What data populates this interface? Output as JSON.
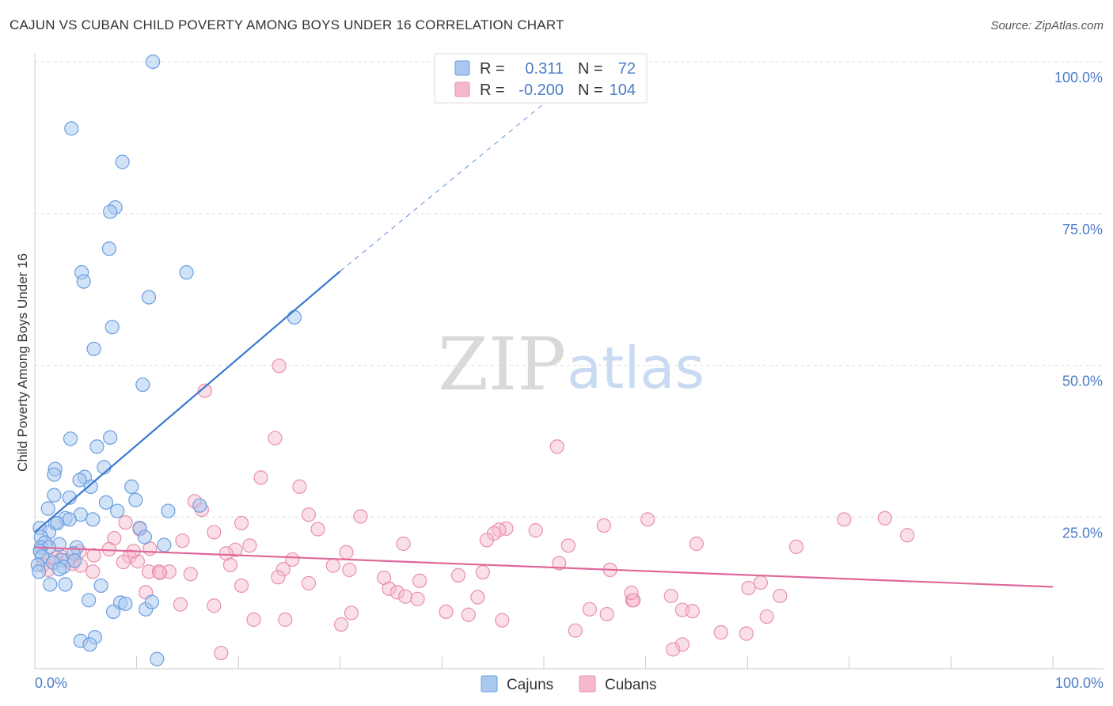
{
  "header": {
    "title": "CAJUN VS CUBAN CHILD POVERTY AMONG BOYS UNDER 16 CORRELATION CHART",
    "source": "Source: ZipAtlas.com"
  },
  "watermark": {
    "zip": "ZIP",
    "atlas": "atlas"
  },
  "legend": {
    "rows": [
      {
        "r_label": "R =",
        "r_value": "0.311",
        "n_label": "N =",
        "n_value": "72"
      },
      {
        "r_label": "R =",
        "r_value": "-0.200",
        "n_label": "N =",
        "n_value": "104"
      }
    ]
  },
  "bottom_legend": {
    "cajuns": "Cajuns",
    "cubans": "Cubans"
  },
  "colors": {
    "cajun_fill": "#a8c8f0",
    "cajun_stroke": "#6a9ee0",
    "cajun_line": "#3a78d0",
    "cuban_fill": "#f7b8cc",
    "cuban_stroke": "#e890ab",
    "cuban_line": "#e0679a",
    "axis_label": "#4a7cc7",
    "grid": "#dddddd"
  },
  "chart_data": {
    "type": "scatter",
    "title": "CAJUN VS CUBAN CHILD POVERTY AMONG BOYS UNDER 16 CORRELATION CHART",
    "xlabel": "",
    "ylabel": "Child Poverty Among Boys Under 16",
    "xlim": [
      0,
      100
    ],
    "ylim": [
      0,
      100
    ],
    "x_tick_labels": [
      "0.0%",
      "100.0%"
    ],
    "y_tick_labels": [
      "25.0%",
      "50.0%",
      "75.0%",
      "100.0%"
    ],
    "y_ticks": [
      25,
      50,
      75,
      100
    ],
    "grid": true,
    "series": [
      {
        "name": "Cajuns",
        "r": 0.311,
        "n": 72,
        "trend": {
          "x0": 0,
          "y0": 22.5,
          "x1": 30,
          "y1": 65.5,
          "dash_x1": 55,
          "dash_y1": 100
        },
        "points": [
          [
            11.6,
            100
          ],
          [
            3.6,
            89
          ],
          [
            8.6,
            83.5
          ],
          [
            7.9,
            76
          ],
          [
            7.4,
            75.3
          ],
          [
            7.3,
            69.2
          ],
          [
            4.6,
            65.3
          ],
          [
            14.9,
            65.3
          ],
          [
            4.8,
            63.8
          ],
          [
            11.2,
            61.2
          ],
          [
            25.5,
            57.9
          ],
          [
            7.6,
            56.3
          ],
          [
            5.8,
            52.7
          ],
          [
            10.6,
            46.8
          ],
          [
            3.5,
            37.9
          ],
          [
            7.4,
            38.1
          ],
          [
            6.1,
            36.6
          ],
          [
            2.0,
            32.9
          ],
          [
            6.8,
            33.2
          ],
          [
            1.9,
            32.0
          ],
          [
            4.9,
            31.6
          ],
          [
            4.4,
            31.1
          ],
          [
            5.5,
            30.0
          ],
          [
            9.5,
            30.0
          ],
          [
            1.9,
            28.6
          ],
          [
            3.4,
            28.2
          ],
          [
            9.9,
            27.8
          ],
          [
            7.0,
            27.4
          ],
          [
            16.2,
            26.9
          ],
          [
            1.3,
            26.4
          ],
          [
            13.1,
            26.0
          ],
          [
            8.1,
            26.0
          ],
          [
            4.5,
            25.4
          ],
          [
            3.0,
            24.8
          ],
          [
            3.4,
            24.6
          ],
          [
            5.7,
            24.6
          ],
          [
            2.0,
            24.0
          ],
          [
            2.2,
            24.0
          ],
          [
            0.5,
            23.2
          ],
          [
            10.3,
            23.2
          ],
          [
            1.4,
            22.5
          ],
          [
            0.6,
            21.7
          ],
          [
            10.8,
            21.7
          ],
          [
            1.0,
            20.8
          ],
          [
            2.4,
            20.5
          ],
          [
            12.7,
            20.4
          ],
          [
            0.6,
            20.0
          ],
          [
            1.4,
            20.0
          ],
          [
            4.1,
            20.0
          ],
          [
            0.5,
            19.4
          ],
          [
            3.8,
            19.0
          ],
          [
            0.7,
            18.5
          ],
          [
            2.6,
            17.9
          ],
          [
            3.9,
            17.8
          ],
          [
            1.8,
            17.5
          ],
          [
            0.3,
            17.1
          ],
          [
            2.8,
            16.8
          ],
          [
            2.4,
            16.4
          ],
          [
            0.4,
            16.0
          ],
          [
            1.5,
            13.9
          ],
          [
            3.0,
            13.9
          ],
          [
            6.5,
            13.7
          ],
          [
            5.3,
            11.3
          ],
          [
            8.4,
            10.9
          ],
          [
            8.9,
            10.7
          ],
          [
            10.9,
            9.8
          ],
          [
            7.7,
            9.4
          ],
          [
            11.5,
            11.0
          ],
          [
            4.5,
            4.6
          ],
          [
            5.9,
            5.2
          ],
          [
            5.4,
            4.0
          ],
          [
            12.0,
            1.6
          ]
        ]
      },
      {
        "name": "Cubans",
        "r": -0.2,
        "n": 104,
        "trend": {
          "x0": 0,
          "y0": 20.0,
          "x1": 100,
          "y1": 13.5
        },
        "points": [
          [
            24.0,
            49.9
          ],
          [
            16.7,
            45.8
          ],
          [
            23.6,
            38.0
          ],
          [
            51.3,
            36.6
          ],
          [
            22.2,
            31.5
          ],
          [
            26.0,
            30.0
          ],
          [
            15.7,
            27.6
          ],
          [
            16.4,
            26.2
          ],
          [
            26.9,
            25.4
          ],
          [
            32.0,
            25.1
          ],
          [
            83.5,
            24.8
          ],
          [
            79.5,
            24.6
          ],
          [
            60.2,
            24.6
          ],
          [
            8.9,
            24.1
          ],
          [
            20.3,
            24.0
          ],
          [
            55.9,
            23.6
          ],
          [
            10.3,
            23.0
          ],
          [
            46.3,
            23.1
          ],
          [
            27.8,
            23.0
          ],
          [
            17.6,
            22.5
          ],
          [
            49.2,
            22.8
          ],
          [
            45.6,
            22.9
          ],
          [
            45.1,
            22.3
          ],
          [
            85.7,
            22.0
          ],
          [
            7.8,
            21.5
          ],
          [
            44.4,
            21.2
          ],
          [
            14.5,
            21.1
          ],
          [
            65.0,
            20.6
          ],
          [
            36.2,
            20.6
          ],
          [
            52.4,
            20.3
          ],
          [
            74.8,
            20.1
          ],
          [
            21.1,
            20.3
          ],
          [
            19.7,
            19.6
          ],
          [
            11.3,
            19.8
          ],
          [
            7.3,
            19.7
          ],
          [
            30.6,
            19.2
          ],
          [
            4.4,
            19.3
          ],
          [
            18.8,
            19.0
          ],
          [
            9.3,
            18.5
          ],
          [
            2.7,
            18.4
          ],
          [
            1.3,
            18.0
          ],
          [
            25.3,
            18.0
          ],
          [
            10.1,
            17.7
          ],
          [
            8.7,
            17.6
          ],
          [
            3.7,
            17.3
          ],
          [
            0.8,
            17.1
          ],
          [
            4.5,
            17.0
          ],
          [
            51.5,
            17.4
          ],
          [
            19.2,
            17.1
          ],
          [
            29.3,
            17.0
          ],
          [
            24.4,
            16.4
          ],
          [
            1.3,
            16.3
          ],
          [
            56.5,
            16.3
          ],
          [
            30.9,
            16.3
          ],
          [
            5.7,
            16.0
          ],
          [
            11.2,
            16.0
          ],
          [
            12.2,
            16.0
          ],
          [
            13.2,
            16.0
          ],
          [
            44.0,
            15.9
          ],
          [
            12.3,
            15.8
          ],
          [
            41.6,
            15.4
          ],
          [
            15.3,
            15.6
          ],
          [
            23.9,
            15.1
          ],
          [
            34.3,
            15.0
          ],
          [
            37.8,
            14.5
          ],
          [
            26.9,
            14.1
          ],
          [
            71.3,
            14.2
          ],
          [
            70.1,
            13.3
          ],
          [
            20.3,
            13.7
          ],
          [
            34.8,
            13.2
          ],
          [
            35.6,
            12.6
          ],
          [
            10.9,
            12.6
          ],
          [
            62.5,
            12.0
          ],
          [
            36.4,
            11.9
          ],
          [
            37.6,
            11.5
          ],
          [
            43.5,
            11.8
          ],
          [
            58.7,
            11.3
          ],
          [
            58.8,
            11.3
          ],
          [
            73.2,
            12.0
          ],
          [
            58.6,
            12.5
          ],
          [
            14.3,
            10.6
          ],
          [
            17.6,
            10.4
          ],
          [
            54.5,
            9.8
          ],
          [
            63.6,
            9.7
          ],
          [
            40.4,
            9.4
          ],
          [
            64.6,
            9.5
          ],
          [
            31.1,
            9.2
          ],
          [
            42.6,
            8.9
          ],
          [
            56.2,
            9.0
          ],
          [
            71.9,
            8.6
          ],
          [
            24.6,
            8.1
          ],
          [
            21.5,
            8.1
          ],
          [
            45.9,
            8.0
          ],
          [
            30.1,
            7.3
          ],
          [
            53.1,
            6.3
          ],
          [
            67.4,
            6.0
          ],
          [
            69.9,
            5.8
          ],
          [
            63.6,
            4.0
          ],
          [
            18.3,
            2.6
          ],
          [
            62.7,
            3.2
          ],
          [
            5.8,
            18.7
          ],
          [
            9.7,
            19.4
          ],
          [
            2.1,
            18.3
          ],
          [
            3.2,
            17.9
          ]
        ]
      }
    ]
  }
}
